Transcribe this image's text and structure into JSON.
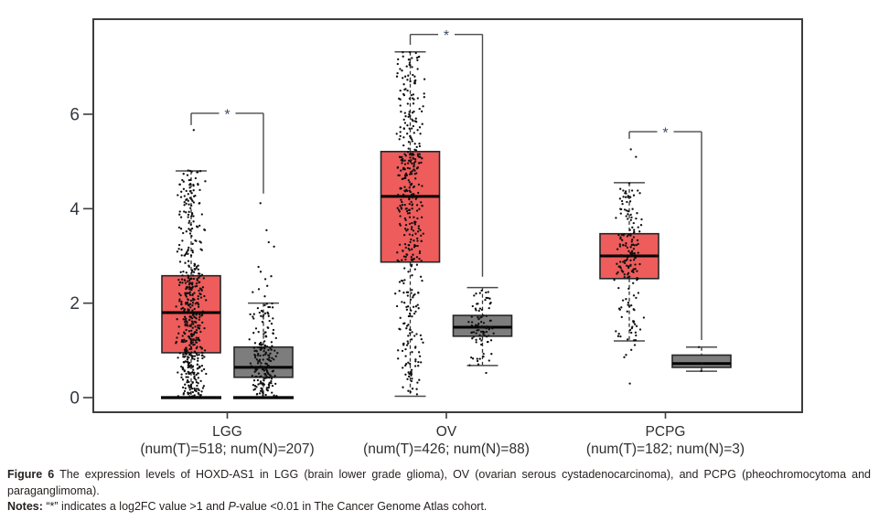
{
  "caption": {
    "figure_label": "Figure 6",
    "line1": "The expression levels of HOXD-AS1 in LGG (brain lower grade glioma), OV (ovarian serous cystadenocarcinoma), and PCPG (pheochromocytoma and",
    "line2": "paraganglimoma).",
    "notes_label": "Notes:",
    "notes_pre": "“*” indicates a log2FC value >1 and ",
    "notes_italic": "P",
    "notes_post": "-value <0.01 in The Cancer Genome Atlas cohort."
  },
  "colors": {
    "tumor_fill": "#ee5c5c",
    "normal_fill": "#7d7d7d",
    "box_stroke": "#262626",
    "median": "#000000",
    "plot_border": "#3d3d3d",
    "bracket": "#4a4a4a",
    "asterisk": "#3c4b67",
    "dot": "#101010",
    "axis_text": "#32373f",
    "whisker": "#333333",
    "cap": "#4a4a4a"
  },
  "chart_data": {
    "type": "box",
    "title": "",
    "xlabel": "",
    "ylabel": "",
    "y_ticks": [
      0,
      2,
      4,
      6
    ],
    "ylim": [
      -0.31,
      8.01
    ],
    "grid": false,
    "legend": null,
    "significance_marker": "*",
    "groups": [
      {
        "label": "LGG",
        "sublabel": "(num(T)=518; num(N)=207)",
        "significance": "*",
        "bracket": {
          "top": 6.02,
          "left_drop": 5.77,
          "right_drop": 4.32
        },
        "tumor": {
          "n": 518,
          "whisker_low": 0.0,
          "q1": 0.95,
          "median": 1.8,
          "q3": 2.58,
          "whisker_high": 4.8,
          "extra_points": [
            5.65
          ],
          "zero_cluster": true
        },
        "normal": {
          "n": 207,
          "whisker_low": 0.0,
          "q1": 0.43,
          "median": 0.64,
          "q3": 1.07,
          "whisker_high": 2.0,
          "extra_points": [
            4.12,
            3.54,
            3.29,
            3.19,
            2.77,
            2.65,
            2.57,
            2.5,
            2.38,
            2.28,
            2.22,
            2.13
          ],
          "zero_cluster": true
        }
      },
      {
        "label": "OV",
        "sublabel": "(num(T)=426; num(N)=88)",
        "significance": "*",
        "bracket": {
          "top": 7.69,
          "left_drop": 7.47,
          "right_drop": 2.56
        },
        "tumor": {
          "n": 426,
          "whisker_low": 0.03,
          "q1": 2.87,
          "median": 4.26,
          "q3": 5.21,
          "whisker_high": 7.32,
          "extra_points": [],
          "zero_cluster": false
        },
        "normal": {
          "n": 88,
          "whisker_low": 0.68,
          "q1": 1.3,
          "median": 1.49,
          "q3": 1.74,
          "whisker_high": 2.33,
          "extra_points": [
            0.52
          ],
          "zero_cluster": false
        }
      },
      {
        "label": "PCPG",
        "sublabel": "(num(T)=182; num(N)=3)",
        "significance": "*",
        "bracket": {
          "top": 5.63,
          "left_drop": 5.48,
          "right_drop": 1.22
        },
        "tumor": {
          "n": 182,
          "whisker_low": 1.2,
          "q1": 2.52,
          "median": 3.0,
          "q3": 3.47,
          "whisker_high": 4.55,
          "extra_points": [
            5.27,
            5.11,
            1.1,
            1.0,
            0.9,
            0.85,
            0.31
          ],
          "zero_cluster": false
        },
        "normal": {
          "n": 3,
          "whisker_low": 0.56,
          "q1": 0.64,
          "median": 0.72,
          "q3": 0.9,
          "whisker_high": 1.07,
          "points": [
            1.07,
            0.72,
            0.56
          ],
          "extra_points": [],
          "zero_cluster": false
        }
      }
    ]
  }
}
